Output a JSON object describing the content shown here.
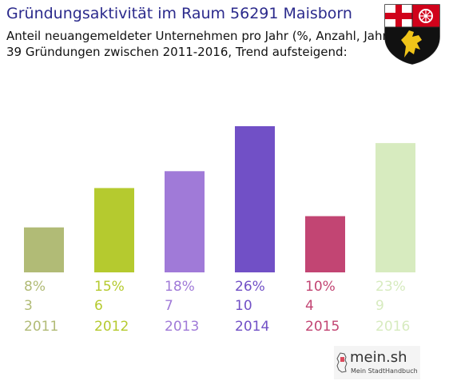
{
  "title": "Gründungsaktivität im Raum 56291 Maisborn",
  "subtitle_line1": "Anteil neuangemeldeter Unternehmen pro Jahr (%, Anzahl, Jahr)",
  "subtitle_line2": "39 Gründungen zwischen 2011-2016, Trend aufsteigend:",
  "brand": {
    "name": "mein.sh",
    "tagline": "Mein StadtHandbuch"
  },
  "chart_data": {
    "type": "bar",
    "categories": [
      "2011",
      "2012",
      "2013",
      "2014",
      "2015",
      "2016"
    ],
    "values": [
      8,
      15,
      18,
      26,
      10,
      23
    ],
    "counts": [
      3,
      6,
      7,
      10,
      4,
      9
    ],
    "value_labels": [
      "8%",
      "15%",
      "18%",
      "26%",
      "10%",
      "23%"
    ],
    "count_labels": [
      "3",
      "6",
      "7",
      "10",
      "4",
      "9"
    ],
    "colors": [
      "#b1bb76",
      "#b5ca2f",
      "#a07ad8",
      "#7150c6",
      "#c24573",
      "#d7ebbf"
    ],
    "ylim": [
      0,
      26
    ]
  }
}
